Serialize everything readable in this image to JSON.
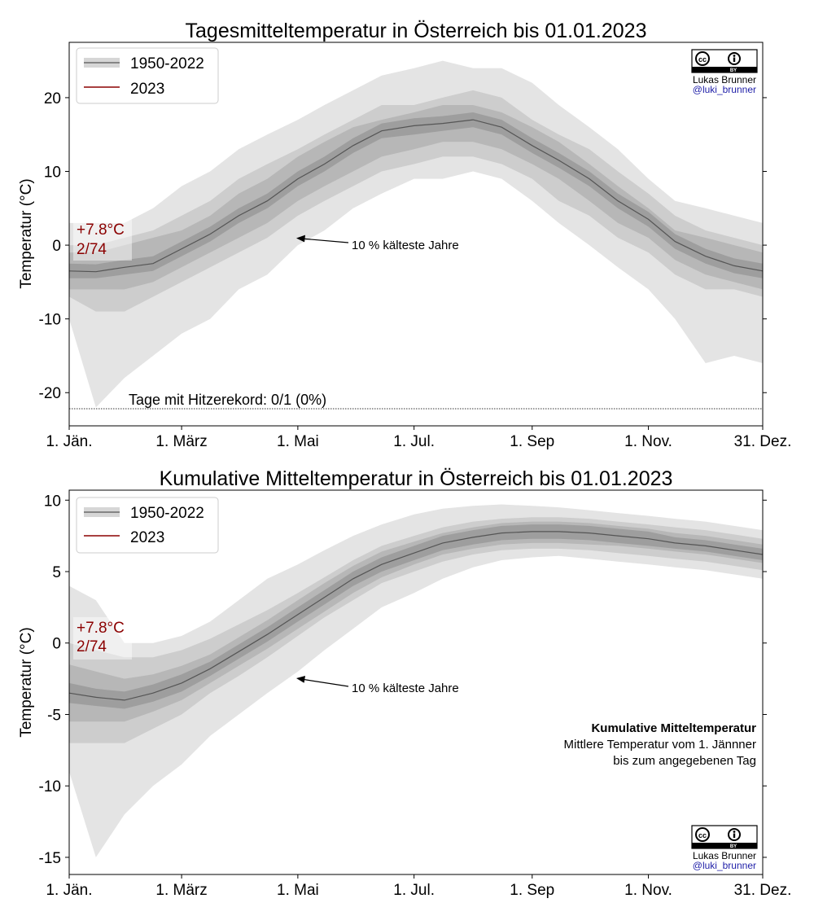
{
  "figure": {
    "credit_author": "Lukas Brunner",
    "credit_handle": "@luki_brunner",
    "license_cc": "cc",
    "license_by": "BY",
    "license_icon": "cc-by-license-icon"
  },
  "chart_data": [
    {
      "type": "area",
      "title": "Tagesmitteltemperatur in Österreich bis 01.01.2023",
      "xlabel": "",
      "ylabel": "Temperatur (°C)",
      "x_ticks": [
        "1. Jän.",
        "1. März",
        "1. Mai",
        "1. Jul.",
        "1. Sep",
        "1. Nov.",
        "31. Dez."
      ],
      "x_tick_days": [
        1,
        60,
        121,
        182,
        244,
        305,
        365
      ],
      "y_ticks": [
        "20",
        "10",
        "0",
        "-10",
        "-20"
      ],
      "y_tick_values": [
        20,
        10,
        0,
        -10,
        -20
      ],
      "xlim": [
        1,
        365
      ],
      "ylim": [
        -24.5,
        27.5
      ],
      "legend": [
        {
          "label": "1950-2022",
          "color": "#555555"
        },
        {
          "label": "2023",
          "color": "#8b0000"
        }
      ],
      "legend_position": "top-left",
      "anomaly_value": "+7.8°C",
      "rank": "2/74",
      "annotation_coldest": "10 % kälteste Jahre",
      "record_text": "Tage mit Hitzerekord: 0/1 (0%)",
      "record_line_value": -22,
      "band_colors": [
        "#e4e4e4",
        "#cdcdcd",
        "#b7b7b7",
        "#9e9e9e"
      ],
      "climatology": {
        "days": [
          1,
          15,
          30,
          45,
          60,
          75,
          90,
          105,
          121,
          135,
          150,
          165,
          182,
          197,
          213,
          228,
          244,
          258,
          274,
          289,
          305,
          319,
          335,
          350,
          365
        ],
        "median": [
          -3.5,
          -3.6,
          -3.0,
          -2.5,
          -0.5,
          1.5,
          4.0,
          6.0,
          9.0,
          11.0,
          13.5,
          15.5,
          16.2,
          16.5,
          17.0,
          16.0,
          13.5,
          11.5,
          9.0,
          6.0,
          3.5,
          0.5,
          -1.5,
          -2.8,
          -3.5
        ],
        "bands": [
          {
            "low": [
              -10,
              -22,
              -18,
              -15,
              -12,
              -10,
              -6,
              -4,
              0,
              2,
              5,
              7,
              9,
              9,
              10,
              9,
              6,
              3,
              0,
              -3,
              -6,
              -10,
              -16,
              -15,
              -16
            ],
            "high": [
              3,
              3,
              3,
              5,
              8,
              10,
              13,
              15,
              17,
              19,
              21,
              23,
              24,
              25,
              24,
              24,
              22,
              19,
              16,
              13,
              9,
              6,
              5,
              4,
              3
            ]
          },
          {
            "low": [
              -7,
              -9,
              -9,
              -7,
              -5,
              -3,
              -1,
              1,
              4,
              6,
              8,
              10,
              11,
              12,
              12,
              11,
              9,
              6,
              4,
              1,
              -1,
              -4,
              -6,
              -6,
              -7
            ],
            "high": [
              0,
              0,
              1,
              2,
              4,
              6,
              9,
              11,
              13,
              15,
              17,
              19,
              19,
              20,
              21,
              20,
              17,
              15,
              13,
              10,
              7,
              4,
              2,
              1,
              0
            ]
          },
          {
            "low": [
              -6,
              -6,
              -6,
              -5,
              -3,
              -1,
              1,
              3,
              6,
              8,
              10,
              12,
              13,
              14,
              14,
              13,
              11,
              9,
              6,
              3,
              1,
              -2,
              -4,
              -5,
              -6
            ],
            "high": [
              -1,
              -1,
              0,
              1,
              2,
              4,
              7,
              9,
              12,
              14,
              16,
              17,
              18,
              19,
              19,
              18,
              16,
              14,
              11,
              8,
              5,
              2,
              1,
              0,
              -1
            ]
          },
          {
            "low": [
              -4.5,
              -4.5,
              -4,
              -3.5,
              -1.5,
              0.5,
              3,
              5,
              8,
              10,
              12.5,
              14.5,
              15,
              15.5,
              16,
              15,
              12.5,
              10.5,
              8,
              5,
              2.5,
              -0.5,
              -2.5,
              -3.8,
              -4.5
            ],
            "high": [
              -2.5,
              -2.6,
              -2,
              -1.5,
              0.5,
              2.5,
              5,
              7,
              10,
              12,
              14.5,
              16.5,
              17.2,
              17.5,
              18,
              17,
              14.5,
              12.5,
              10,
              7,
              4.5,
              1.5,
              -0.5,
              -1.8,
              -2.5
            ]
          }
        ]
      }
    },
    {
      "type": "area",
      "title": "Kumulative Mitteltemperatur in Österreich bis 01.01.2023",
      "xlabel": "",
      "ylabel": "Temperatur (°C)",
      "x_ticks": [
        "1. Jän.",
        "1. März",
        "1. Mai",
        "1. Jul.",
        "1. Sep",
        "1. Nov.",
        "31. Dez."
      ],
      "x_tick_days": [
        1,
        60,
        121,
        182,
        244,
        305,
        365
      ],
      "y_ticks": [
        "10",
        "5",
        "0",
        "-5",
        "-10",
        "-15"
      ],
      "y_tick_values": [
        10,
        5,
        0,
        -5,
        -10,
        -15
      ],
      "xlim": [
        1,
        365
      ],
      "ylim": [
        -16.2,
        10.7
      ],
      "legend": [
        {
          "label": "1950-2022",
          "color": "#555555"
        },
        {
          "label": "2023",
          "color": "#8b0000"
        }
      ],
      "legend_position": "top-left",
      "anomaly_value": "+7.8°C",
      "rank": "2/74",
      "annotation_coldest": "10 % kälteste Jahre",
      "info_title": "Kumulative Mitteltemperatur",
      "info_line1": "Mittlere Temperatur vom 1. Jännner",
      "info_line2": "bis zum angegebenen Tag",
      "band_colors": [
        "#e4e4e4",
        "#cdcdcd",
        "#b7b7b7",
        "#9e9e9e"
      ],
      "climatology": {
        "days": [
          1,
          15,
          30,
          45,
          60,
          75,
          90,
          105,
          121,
          135,
          150,
          165,
          182,
          197,
          213,
          228,
          244,
          258,
          274,
          289,
          305,
          319,
          335,
          350,
          365
        ],
        "median": [
          -3.5,
          -3.8,
          -4.0,
          -3.5,
          -2.8,
          -1.8,
          -0.6,
          0.6,
          2.0,
          3.2,
          4.5,
          5.5,
          6.3,
          7.0,
          7.4,
          7.7,
          7.8,
          7.8,
          7.7,
          7.5,
          7.3,
          7.0,
          6.8,
          6.5,
          6.2
        ],
        "bands": [
          {
            "low": [
              -9,
              -15,
              -12,
              -10,
              -8.5,
              -6.5,
              -5,
              -3.5,
              -2,
              -0.5,
              1,
              2.5,
              3.5,
              4.5,
              5.3,
              5.8,
              6.0,
              6.1,
              5.9,
              5.7,
              5.5,
              5.3,
              5.1,
              4.8,
              4.5
            ],
            "high": [
              4,
              3,
              0,
              0,
              0.5,
              1.5,
              3,
              4.5,
              5.5,
              6.5,
              7.5,
              8.3,
              9,
              9.4,
              9.6,
              9.7,
              9.6,
              9.5,
              9.3,
              9.1,
              8.9,
              8.7,
              8.5,
              8.2,
              7.9
            ]
          },
          {
            "low": [
              -7,
              -7,
              -7,
              -6,
              -5,
              -3.5,
              -2.3,
              -1,
              0.5,
              1.8,
              3,
              4.2,
              5,
              5.7,
              6.2,
              6.5,
              6.6,
              6.6,
              6.5,
              6.3,
              6.1,
              5.9,
              5.7,
              5.4,
              5.1
            ],
            "high": [
              0,
              -0.5,
              -1,
              -1,
              -0.5,
              0.3,
              1.3,
              2.3,
              3.5,
              4.6,
              5.8,
              6.8,
              7.5,
              8.1,
              8.5,
              8.7,
              8.8,
              8.8,
              8.7,
              8.5,
              8.3,
              8.1,
              7.9,
              7.6,
              7.3
            ]
          },
          {
            "low": [
              -5.5,
              -5.5,
              -5.5,
              -4.8,
              -4,
              -2.8,
              -1.6,
              -0.4,
              1,
              2.2,
              3.5,
              4.6,
              5.5,
              6.2,
              6.6,
              6.9,
              7.0,
              7.0,
              6.9,
              6.8,
              6.6,
              6.4,
              6.2,
              5.9,
              5.6
            ],
            "high": [
              -1.5,
              -2,
              -2.5,
              -2.2,
              -1.6,
              -0.8,
              0.4,
              1.6,
              3,
              4.2,
              5.4,
              6.4,
              7.1,
              7.7,
              8.1,
              8.4,
              8.5,
              8.5,
              8.4,
              8.2,
              8.0,
              7.7,
              7.5,
              7.2,
              6.9
            ]
          },
          {
            "low": [
              -4.2,
              -4.4,
              -4.6,
              -4.1,
              -3.4,
              -2.3,
              -1.1,
              0.1,
              1.5,
              2.7,
              4,
              5,
              5.8,
              6.5,
              6.9,
              7.2,
              7.3,
              7.3,
              7.2,
              7.0,
              6.8,
              6.6,
              6.4,
              6.1,
              5.8
            ],
            "high": [
              -2.8,
              -3.2,
              -3.4,
              -2.9,
              -2.2,
              -1.3,
              -0.1,
              1.1,
              2.5,
              3.7,
              5,
              6,
              6.8,
              7.5,
              7.9,
              8.2,
              8.3,
              8.3,
              8.2,
              8.0,
              7.8,
              7.4,
              7.2,
              6.9,
              6.6
            ]
          }
        ]
      }
    }
  ]
}
